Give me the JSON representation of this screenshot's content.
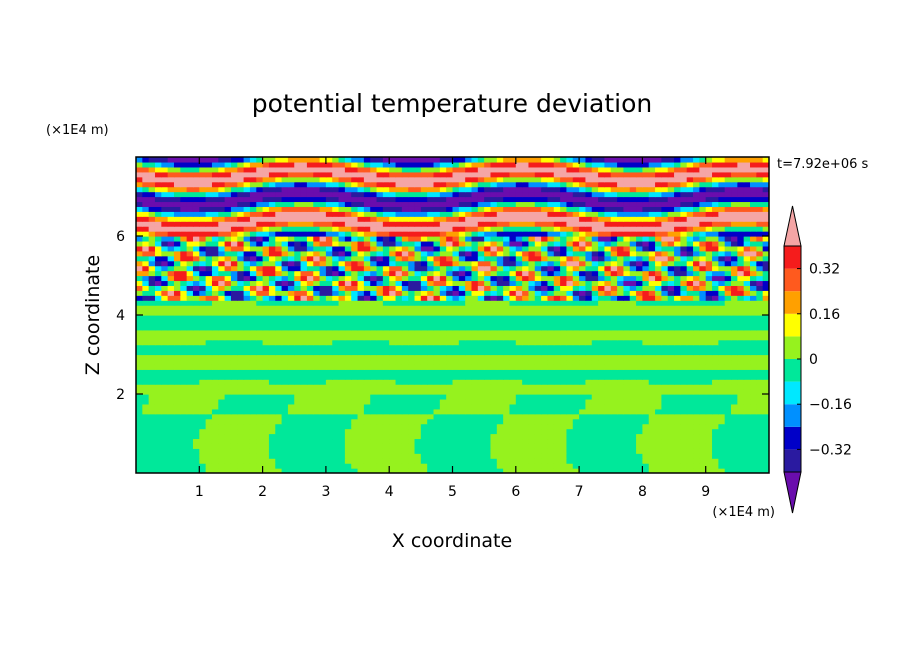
{
  "chart_data": {
    "type": "heatmap",
    "title": "potential temperature deviation",
    "xlabel": "X coordinate",
    "ylabel": "Z coordinate",
    "x_unit": "(×1E4 m)",
    "y_unit": "(×1E4 m)",
    "time_label": "t=7.92e+06 s",
    "xlim": [
      0,
      10
    ],
    "ylim": [
      0,
      8
    ],
    "x_ticks": [
      1,
      2,
      3,
      4,
      5,
      6,
      7,
      8,
      9
    ],
    "y_ticks": [
      2,
      4,
      6
    ],
    "colorbar": {
      "levels": [
        -0.4,
        -0.32,
        -0.24,
        -0.16,
        -0.08,
        0,
        0.08,
        0.16,
        0.24,
        0.32,
        0.4
      ],
      "tick_labels": [
        {
          "value": 0.32,
          "label": "0.32"
        },
        {
          "value": 0.16,
          "label": "0.16"
        },
        {
          "value": 0,
          "label": "0"
        },
        {
          "value": -0.16,
          "label": "−0.16"
        },
        {
          "value": -0.32,
          "label": "−0.32"
        }
      ],
      "colors": [
        "#6a0dad",
        "#2a1aa0",
        "#0000c8",
        "#0090ff",
        "#00e8ff",
        "#00e89a",
        "#96f21e",
        "#ffff00",
        "#ffa000",
        "#ff5a1e",
        "#f51c1c",
        "#f5a5a5"
      ],
      "extend": "both"
    },
    "regions": [
      {
        "z_range": [
          0,
          2.0
        ],
        "dominant_value": -0.04,
        "secondary_value": 0.04,
        "pattern": "large cells"
      },
      {
        "z_range": [
          2.0,
          4.4
        ],
        "dominant_value": 0.04,
        "secondary_value": -0.04,
        "pattern": "horizontal layers"
      },
      {
        "z_range": [
          4.4,
          6.0
        ],
        "dominant_value": 0.45,
        "secondary_value": -0.45,
        "pattern": "turbulent mix"
      },
      {
        "z_range": [
          6.0,
          8.0
        ],
        "dominant_value": 0.45,
        "secondary_value": -0.45,
        "pattern": "alternating bands"
      }
    ]
  }
}
